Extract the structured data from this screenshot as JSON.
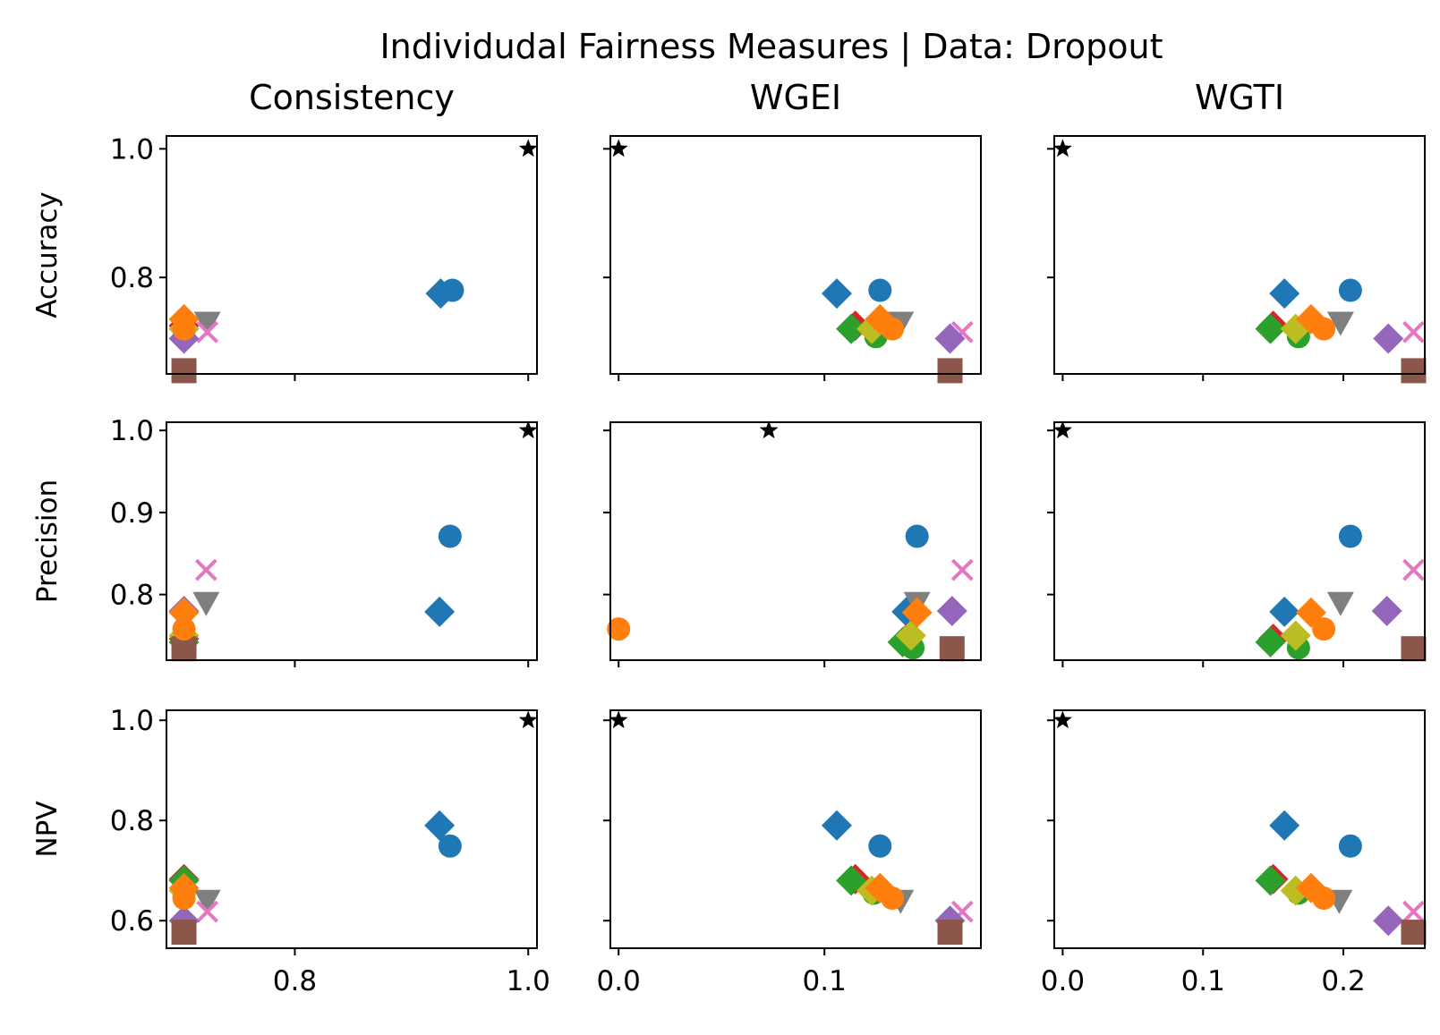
{
  "chart_data": {
    "type": "scatter",
    "title": "Individudal Fairness Measures | Data: Dropout",
    "columns": [
      {
        "title": "Consistency",
        "xlim": [
          0.69,
          1.0075
        ],
        "xticks": [
          0.8,
          1.0
        ],
        "tick_labels": [
          "0.8",
          "1.0"
        ]
      },
      {
        "title": "WGEI",
        "xlim": [
          -0.004,
          0.176
        ],
        "xticks": [
          0.0,
          0.1
        ],
        "tick_labels": [
          "0.0",
          "0.1"
        ]
      },
      {
        "title": "WGTI",
        "xlim": [
          -0.006,
          0.258
        ],
        "xticks": [
          0.0,
          0.1,
          0.2
        ],
        "tick_labels": [
          "0.0",
          "0.1",
          "0.2"
        ]
      }
    ],
    "rows": [
      {
        "ylabel": "Accuracy",
        "ylim": [
          0.65,
          1.02
        ],
        "yticks": [
          0.8,
          1.0
        ],
        "tick_labels": [
          "0.8",
          "1.0"
        ]
      },
      {
        "ylabel": "Precision",
        "ylim": [
          0.72,
          1.01
        ],
        "yticks": [
          0.8,
          0.9,
          1.0
        ],
        "tick_labels": [
          "0.8",
          "0.9",
          "1.0"
        ]
      },
      {
        "ylabel": "NPV",
        "ylim": [
          0.545,
          1.02
        ],
        "yticks": [
          0.6,
          0.8,
          1.0
        ],
        "tick_labels": [
          "0.6",
          "0.8",
          "1.0"
        ]
      }
    ],
    "grid": false,
    "legend": "none",
    "series": [
      {
        "marker": "star",
        "color": "#000000",
        "x": [
          [
            1.0,
            0.0,
            0.0
          ],
          [
            1.0,
            0.073,
            0.0
          ],
          [
            1.0,
            0.0,
            0.0
          ]
        ],
        "y": [
          [
            1.0,
            1.0,
            1.0
          ],
          [
            1.0,
            1.0,
            1.0
          ],
          [
            1.0,
            1.0,
            1.0
          ]
        ]
      },
      {
        "marker": "circle",
        "color": "#1f77b4",
        "x": [
          [
            0.935,
            0.127,
            0.205
          ],
          [
            0.933,
            0.145,
            0.205
          ],
          [
            0.933,
            0.127,
            0.205
          ]
        ],
        "y": [
          [
            0.78,
            0.78,
            0.78
          ],
          [
            0.871,
            0.871,
            0.871
          ],
          [
            0.749,
            0.749,
            0.749
          ]
        ]
      },
      {
        "marker": "diamond",
        "color": "#1f77b4",
        "x": [
          [
            0.925,
            0.106,
            0.158
          ],
          [
            0.924,
            0.14,
            0.158
          ],
          [
            0.924,
            0.106,
            0.158
          ]
        ],
        "y": [
          [
            0.775,
            0.775,
            0.775
          ],
          [
            0.779,
            0.779,
            0.779
          ],
          [
            0.79,
            0.79,
            0.79
          ]
        ]
      },
      {
        "marker": "diamond",
        "color": "#d62728",
        "x": [
          [
            0.705,
            0.115,
            0.15
          ],
          [
            0.705,
            0.14,
            0.15
          ],
          [
            0.705,
            0.115,
            0.15
          ]
        ],
        "y": [
          [
            0.725,
            0.725,
            0.725
          ],
          [
            0.746,
            0.746,
            0.746
          ],
          [
            0.683,
            0.683,
            0.683
          ]
        ]
      },
      {
        "marker": "diamond",
        "color": "#2ca02c",
        "x": [
          [
            0.705,
            0.113,
            0.148
          ],
          [
            0.705,
            0.138,
            0.148
          ],
          [
            0.705,
            0.113,
            0.148
          ]
        ],
        "y": [
          [
            0.72,
            0.72,
            0.72
          ],
          [
            0.742,
            0.742,
            0.742
          ],
          [
            0.68,
            0.68,
            0.68
          ]
        ]
      },
      {
        "marker": "circle",
        "color": "#2ca02c",
        "x": [
          [
            0.705,
            0.125,
            0.168
          ],
          [
            0.705,
            0.143,
            0.168
          ],
          [
            0.705,
            0.124,
            0.168
          ]
        ],
        "y": [
          [
            0.708,
            0.708,
            0.708
          ],
          [
            0.735,
            0.735,
            0.735
          ],
          [
            0.655,
            0.655,
            0.655
          ]
        ]
      },
      {
        "marker": "diamond",
        "color": "#bcbd22",
        "x": [
          [
            0.705,
            0.123,
            0.166
          ],
          [
            0.705,
            0.142,
            0.166
          ],
          [
            0.705,
            0.123,
            0.166
          ]
        ],
        "y": [
          [
            0.72,
            0.72,
            0.72
          ],
          [
            0.75,
            0.75,
            0.75
          ],
          [
            0.66,
            0.66,
            0.66
          ]
        ]
      },
      {
        "marker": "triangle-down",
        "color": "#7f7f7f",
        "x": [
          [
            0.725,
            0.137,
            0.198
          ],
          [
            0.724,
            0.145,
            0.198
          ],
          [
            0.725,
            0.137,
            0.197
          ]
        ],
        "y": [
          [
            0.73,
            0.73,
            0.73
          ],
          [
            0.79,
            0.79,
            0.79
          ],
          [
            0.64,
            0.64,
            0.64
          ]
        ]
      },
      {
        "marker": "x",
        "color": "#e377c2",
        "x": [
          [
            0.725,
            0.167,
            0.25
          ],
          [
            0.724,
            0.167,
            0.25
          ],
          [
            0.725,
            0.167,
            0.25
          ]
        ],
        "y": [
          [
            0.715,
            0.715,
            0.715
          ],
          [
            0.83,
            0.83,
            0.83
          ],
          [
            0.618,
            0.618,
            0.618
          ]
        ]
      },
      {
        "marker": "diamond",
        "color": "#9467bd",
        "x": [
          [
            0.705,
            0.161,
            0.232
          ],
          [
            0.705,
            0.162,
            0.231
          ],
          [
            0.705,
            0.161,
            0.232
          ]
        ],
        "y": [
          [
            0.705,
            0.705,
            0.705
          ],
          [
            0.78,
            0.78,
            0.78
          ],
          [
            0.6,
            0.6,
            0.6
          ]
        ]
      },
      {
        "marker": "square",
        "color": "#8c564b",
        "x": [
          [
            0.705,
            0.161,
            0.25
          ],
          [
            0.705,
            0.162,
            0.25
          ],
          [
            0.705,
            0.161,
            0.25
          ]
        ],
        "y": [
          [
            0.655,
            0.655,
            0.655
          ],
          [
            0.734,
            0.734,
            0.734
          ],
          [
            0.577,
            0.577,
            0.577
          ]
        ]
      },
      {
        "marker": "diamond",
        "color": "#ff7f0e",
        "x": [
          [
            0.705,
            0.127,
            0.177
          ],
          [
            0.705,
            0.145,
            0.177
          ],
          [
            0.705,
            0.127,
            0.177
          ]
        ],
        "y": [
          [
            0.735,
            0.735,
            0.735
          ],
          [
            0.778,
            0.778,
            0.778
          ],
          [
            0.665,
            0.665,
            0.665
          ]
        ]
      },
      {
        "marker": "circle",
        "color": "#ff7f0e",
        "x": [
          [
            0.705,
            0.133,
            0.186
          ],
          [
            0.705,
            0.0,
            0.186
          ],
          [
            0.705,
            0.133,
            0.186
          ]
        ],
        "y": [
          [
            0.72,
            0.72,
            0.72
          ],
          [
            0.758,
            0.758,
            0.758
          ],
          [
            0.645,
            0.645,
            0.645
          ]
        ]
      }
    ]
  }
}
